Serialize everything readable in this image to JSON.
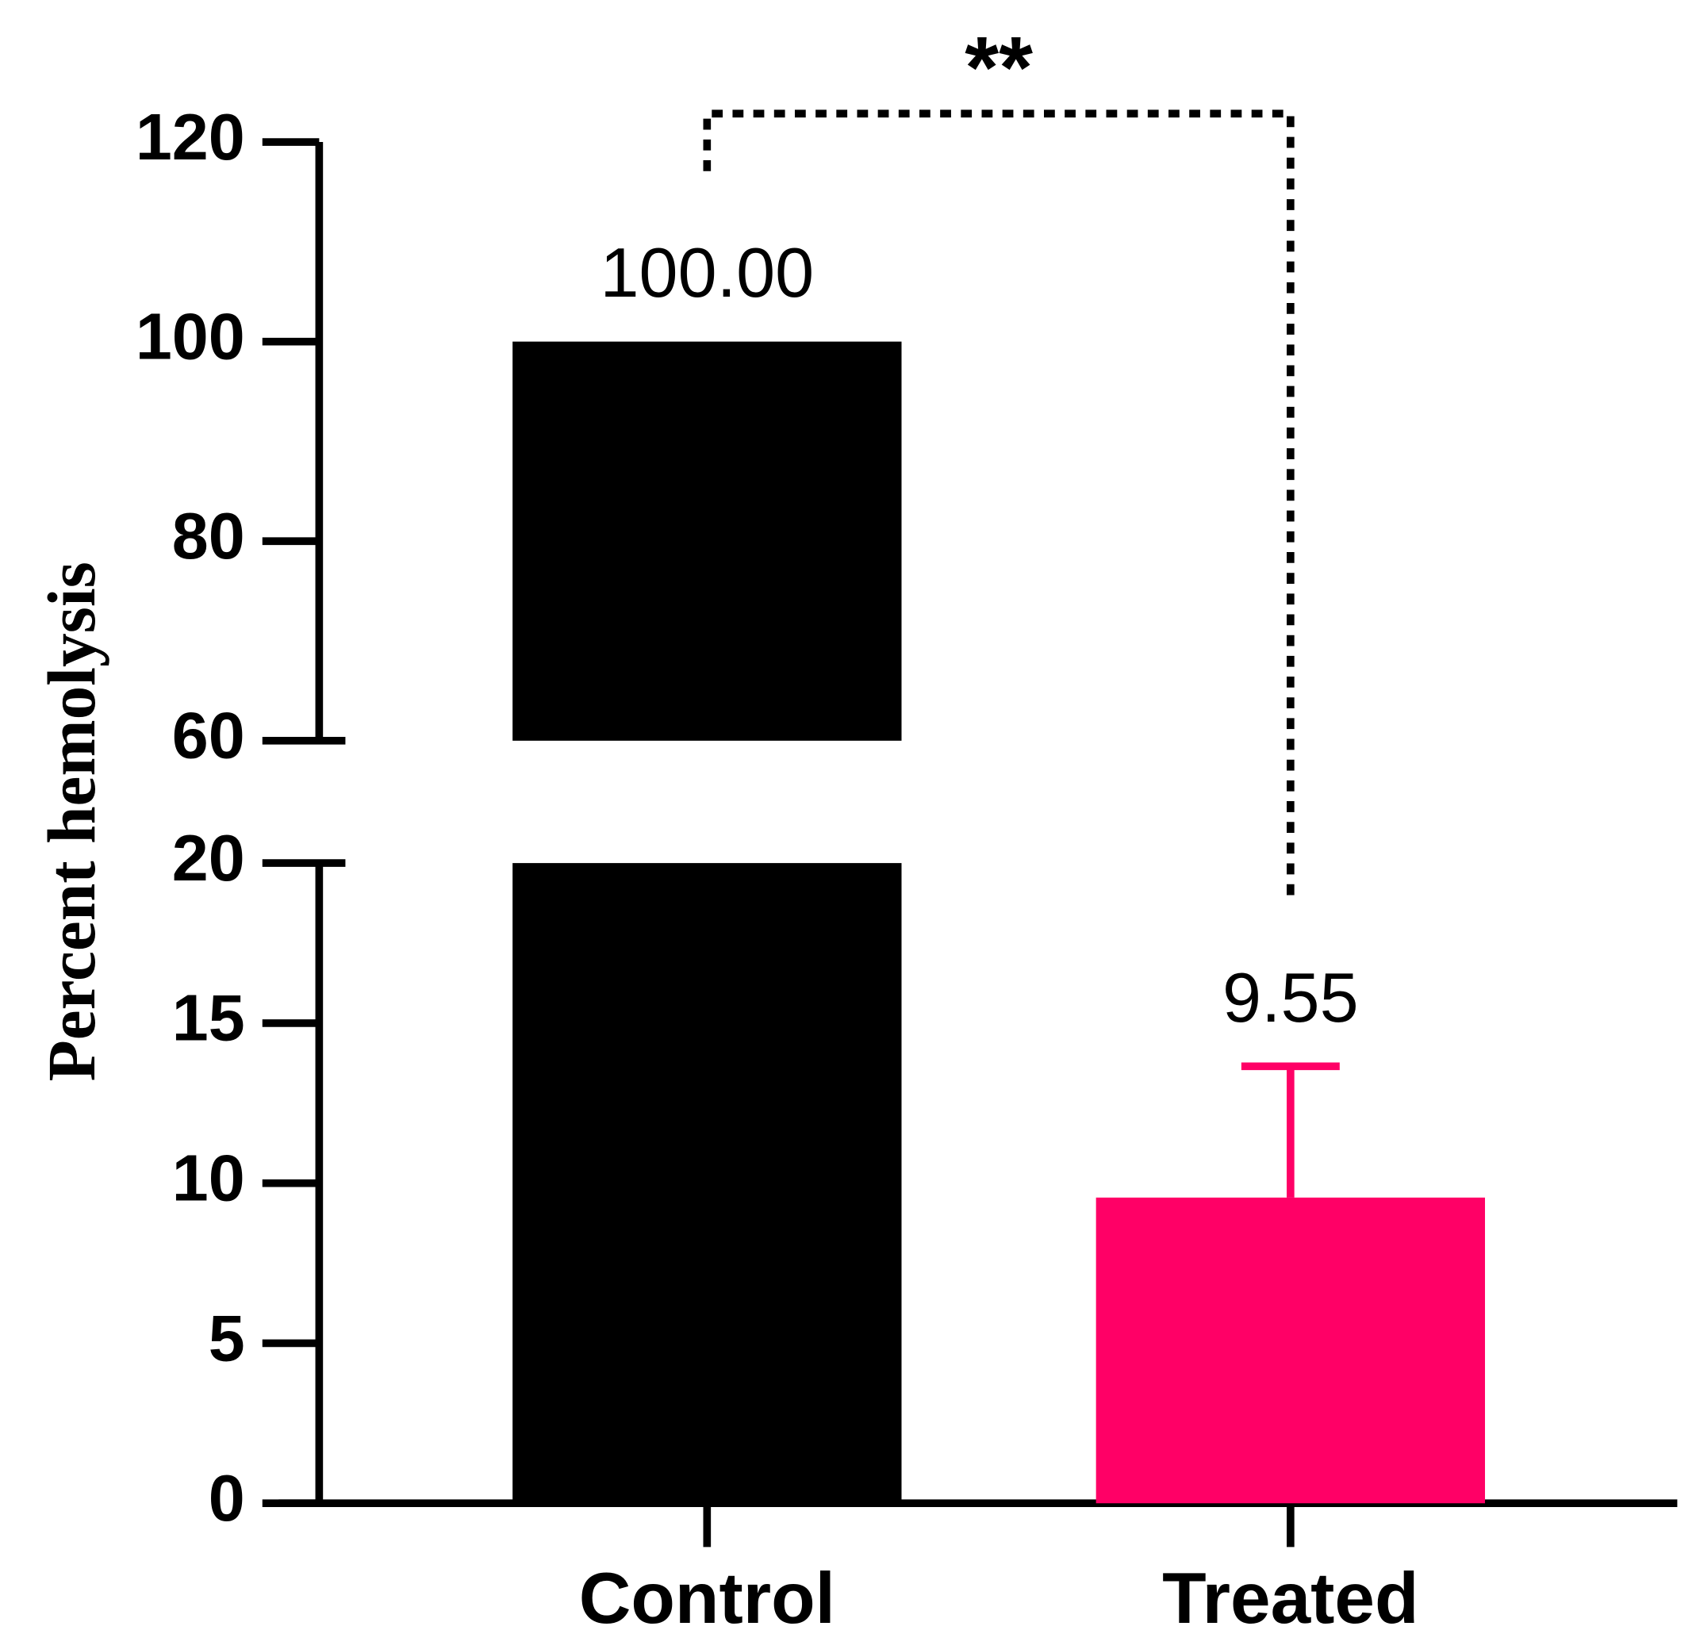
{
  "chart_data": {
    "type": "bar",
    "y_label": "Percent hemolysis",
    "categories": [
      "Control",
      "Treated"
    ],
    "values": [
      100,
      9.55
    ],
    "value_labels": [
      "100.00",
      "9.55"
    ],
    "errors": [
      null,
      4.1
    ],
    "colors": [
      "#000000",
      "#ff0066"
    ],
    "y_segments": [
      {
        "ylim": [
          0,
          20
        ],
        "yticks": [
          0,
          5,
          10,
          15,
          20
        ]
      },
      {
        "ylim": [
          60,
          120
        ],
        "yticks": [
          60,
          80,
          100,
          120
        ]
      }
    ],
    "significance": {
      "text": "**",
      "pair": [
        0,
        1
      ]
    }
  }
}
